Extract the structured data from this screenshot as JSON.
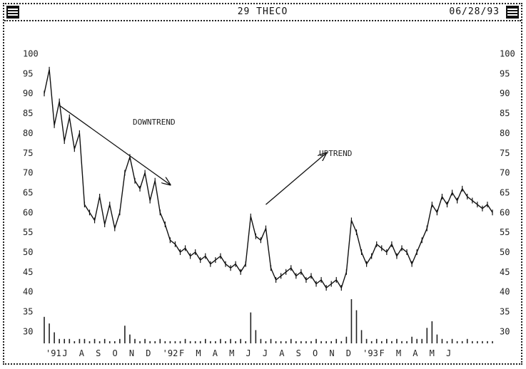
{
  "window": {
    "title": "29 THECO",
    "date": "06/28/93",
    "left_control_icon": "window-menu-icon",
    "right_control_icon": "window-resize-icon"
  },
  "chart_data": {
    "type": "line",
    "title": "29 THECO",
    "xlabel": "",
    "ylabel": "",
    "ylim": [
      27,
      101
    ],
    "y_ticks": [
      "100",
      "95",
      "90",
      "85",
      "80",
      "75",
      "70",
      "65",
      "60",
      "55",
      "50",
      "45",
      "40",
      "35",
      "30"
    ],
    "x_ticks": [
      "'91",
      "J",
      "A",
      "S",
      "O",
      "N",
      "D",
      "'92",
      "F",
      "M",
      "A",
      "M",
      "J",
      "J",
      "A",
      "S",
      "O",
      "N",
      "D",
      "'93",
      "F",
      "M",
      "A",
      "M",
      "J"
    ],
    "grid": false,
    "series": [
      {
        "values": [
          90,
          96,
          82,
          88,
          78,
          84,
          76,
          80,
          62,
          60,
          58,
          64,
          57,
          62,
          56,
          60,
          70,
          74,
          68,
          66,
          70,
          63,
          68,
          60,
          57,
          53,
          52,
          50,
          51,
          49,
          50,
          48,
          49,
          47,
          48,
          49,
          47,
          46,
          47,
          45,
          47,
          59,
          54,
          53,
          56,
          46,
          43,
          44,
          45,
          46,
          44,
          45,
          43,
          44,
          42,
          43,
          41,
          42,
          43,
          41,
          45,
          58,
          55,
          50,
          47,
          49,
          52,
          51,
          50,
          52,
          49,
          51,
          50,
          47,
          50,
          53,
          56,
          62,
          60,
          64,
          62,
          65,
          63,
          66,
          64,
          63,
          62,
          61,
          62,
          60
        ]
      }
    ],
    "volume": [
      12,
      9,
      5,
      2,
      2,
      2,
      1,
      2,
      2,
      1,
      2,
      1,
      2,
      1,
      1,
      2,
      8,
      4,
      2,
      1,
      2,
      1,
      1,
      2,
      1,
      1,
      1,
      1,
      2,
      1,
      1,
      1,
      2,
      1,
      1,
      2,
      1,
      2,
      1,
      2,
      1,
      14,
      6,
      2,
      1,
      2,
      1,
      1,
      1,
      2,
      1,
      1,
      1,
      1,
      2,
      1,
      1,
      1,
      2,
      1,
      3,
      20,
      15,
      6,
      2,
      1,
      2,
      1,
      2,
      1,
      2,
      1,
      1,
      3,
      2,
      2,
      7,
      10,
      4,
      2,
      1,
      2,
      1,
      1,
      2,
      1,
      1,
      1,
      1,
      1
    ],
    "annotations": [
      {
        "text": "DOWNTREND",
        "arrow_from": [
          3,
          87
        ],
        "arrow_to": [
          25,
          67
        ]
      },
      {
        "text": "UPTREND",
        "arrow_from": [
          44,
          62
        ],
        "arrow_to": [
          56,
          75
        ]
      }
    ]
  }
}
